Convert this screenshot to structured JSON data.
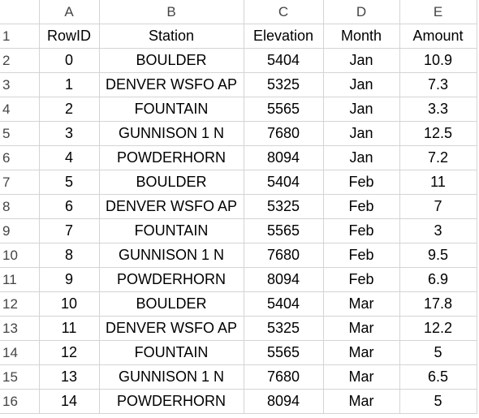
{
  "columns": [
    "A",
    "B",
    "C",
    "D",
    "E"
  ],
  "row_numbers": [
    "1",
    "2",
    "3",
    "4",
    "5",
    "6",
    "7",
    "8",
    "9",
    "10",
    "11",
    "12",
    "13",
    "14",
    "15",
    "16"
  ],
  "header": {
    "rowid": "RowID",
    "station": "Station",
    "elevation": "Elevation",
    "month": "Month",
    "amount": "Amount"
  },
  "rows": [
    {
      "rowid": "0",
      "station": "BOULDER",
      "elevation": "5404",
      "month": "Jan",
      "amount": "10.9"
    },
    {
      "rowid": "1",
      "station": "DENVER WSFO AP",
      "elevation": "5325",
      "month": "Jan",
      "amount": "7.3"
    },
    {
      "rowid": "2",
      "station": "FOUNTAIN",
      "elevation": "5565",
      "month": "Jan",
      "amount": "3.3"
    },
    {
      "rowid": "3",
      "station": "GUNNISON 1 N",
      "elevation": "7680",
      "month": "Jan",
      "amount": "12.5"
    },
    {
      "rowid": "4",
      "station": "POWDERHORN",
      "elevation": "8094",
      "month": "Jan",
      "amount": "7.2"
    },
    {
      "rowid": "5",
      "station": "BOULDER",
      "elevation": "5404",
      "month": "Feb",
      "amount": "11"
    },
    {
      "rowid": "6",
      "station": "DENVER WSFO AP",
      "elevation": "5325",
      "month": "Feb",
      "amount": "7"
    },
    {
      "rowid": "7",
      "station": "FOUNTAIN",
      "elevation": "5565",
      "month": "Feb",
      "amount": "3"
    },
    {
      "rowid": "8",
      "station": "GUNNISON 1 N",
      "elevation": "7680",
      "month": "Feb",
      "amount": "9.5"
    },
    {
      "rowid": "9",
      "station": "POWDERHORN",
      "elevation": "8094",
      "month": "Feb",
      "amount": "6.9"
    },
    {
      "rowid": "10",
      "station": "BOULDER",
      "elevation": "5404",
      "month": "Mar",
      "amount": "17.8"
    },
    {
      "rowid": "11",
      "station": "DENVER WSFO AP",
      "elevation": "5325",
      "month": "Mar",
      "amount": "12.2"
    },
    {
      "rowid": "12",
      "station": "FOUNTAIN",
      "elevation": "5565",
      "month": "Mar",
      "amount": "5"
    },
    {
      "rowid": "13",
      "station": "GUNNISON 1 N",
      "elevation": "7680",
      "month": "Mar",
      "amount": "6.5"
    },
    {
      "rowid": "14",
      "station": "POWDERHORN",
      "elevation": "8094",
      "month": "Mar",
      "amount": "5"
    }
  ]
}
